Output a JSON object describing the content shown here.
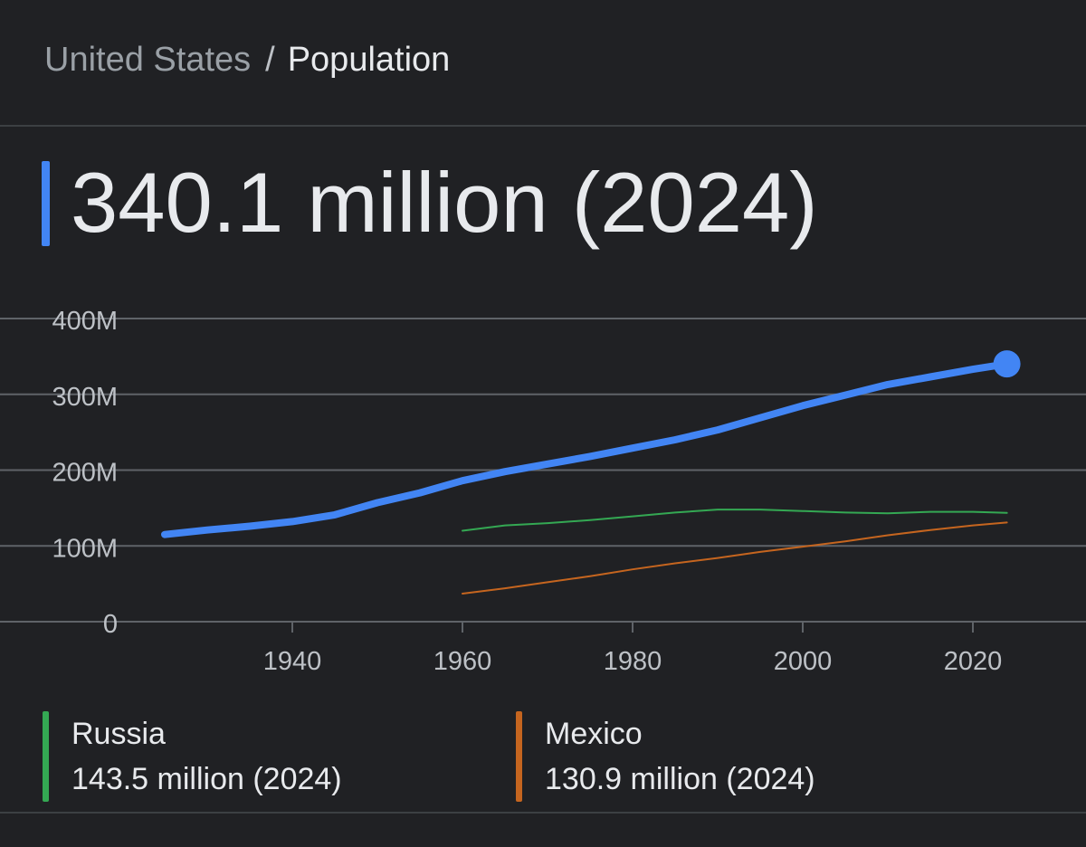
{
  "breadcrumb": {
    "parent": "United States",
    "separator": "/",
    "current": "Population"
  },
  "headline": {
    "value": "340.1 million (2024)",
    "accent_color": "#4285f4"
  },
  "legend": [
    {
      "name": "Russia",
      "value": "143.5 million (2024)",
      "color": "#34a853"
    },
    {
      "name": "Mexico",
      "value": "130.9 million (2024)",
      "color": "#c5651f"
    }
  ],
  "chart_data": {
    "type": "line",
    "xlim": [
      1920,
      2030
    ],
    "ylim": [
      0,
      400
    ],
    "x_ticks": [
      1940,
      1960,
      1980,
      2000,
      2020
    ],
    "y_ticks": [
      0,
      100,
      200,
      300,
      400
    ],
    "y_tick_labels": [
      "0",
      "100M",
      "200M",
      "300M",
      "400M"
    ],
    "grid": true,
    "series": [
      {
        "name": "United States",
        "color": "#4285f4",
        "x": [
          1925,
          1930,
          1935,
          1940,
          1945,
          1950,
          1955,
          1960,
          1965,
          1970,
          1975,
          1980,
          1985,
          1990,
          1995,
          2000,
          2005,
          2010,
          2015,
          2020,
          2024
        ],
        "y": [
          115,
          121,
          126,
          132,
          141,
          157,
          170,
          186,
          198,
          208,
          218,
          229,
          240,
          253,
          269,
          285,
          299,
          313,
          323,
          333,
          340.1
        ],
        "end_marker": true
      },
      {
        "name": "Russia",
        "color": "#34a853",
        "x": [
          1960,
          1965,
          1970,
          1975,
          1980,
          1985,
          1990,
          1995,
          2000,
          2005,
          2010,
          2015,
          2020,
          2024
        ],
        "y": [
          120,
          127,
          130,
          134,
          139,
          144,
          148,
          148,
          146,
          144,
          143,
          145,
          145,
          143.5
        ]
      },
      {
        "name": "Mexico",
        "color": "#c5651f",
        "x": [
          1960,
          1965,
          1970,
          1975,
          1980,
          1985,
          1990,
          1995,
          2000,
          2005,
          2010,
          2015,
          2020,
          2024
        ],
        "y": [
          37,
          44,
          52,
          60,
          69,
          77,
          84,
          92,
          99,
          106,
          114,
          121,
          127,
          130.9
        ]
      }
    ]
  }
}
